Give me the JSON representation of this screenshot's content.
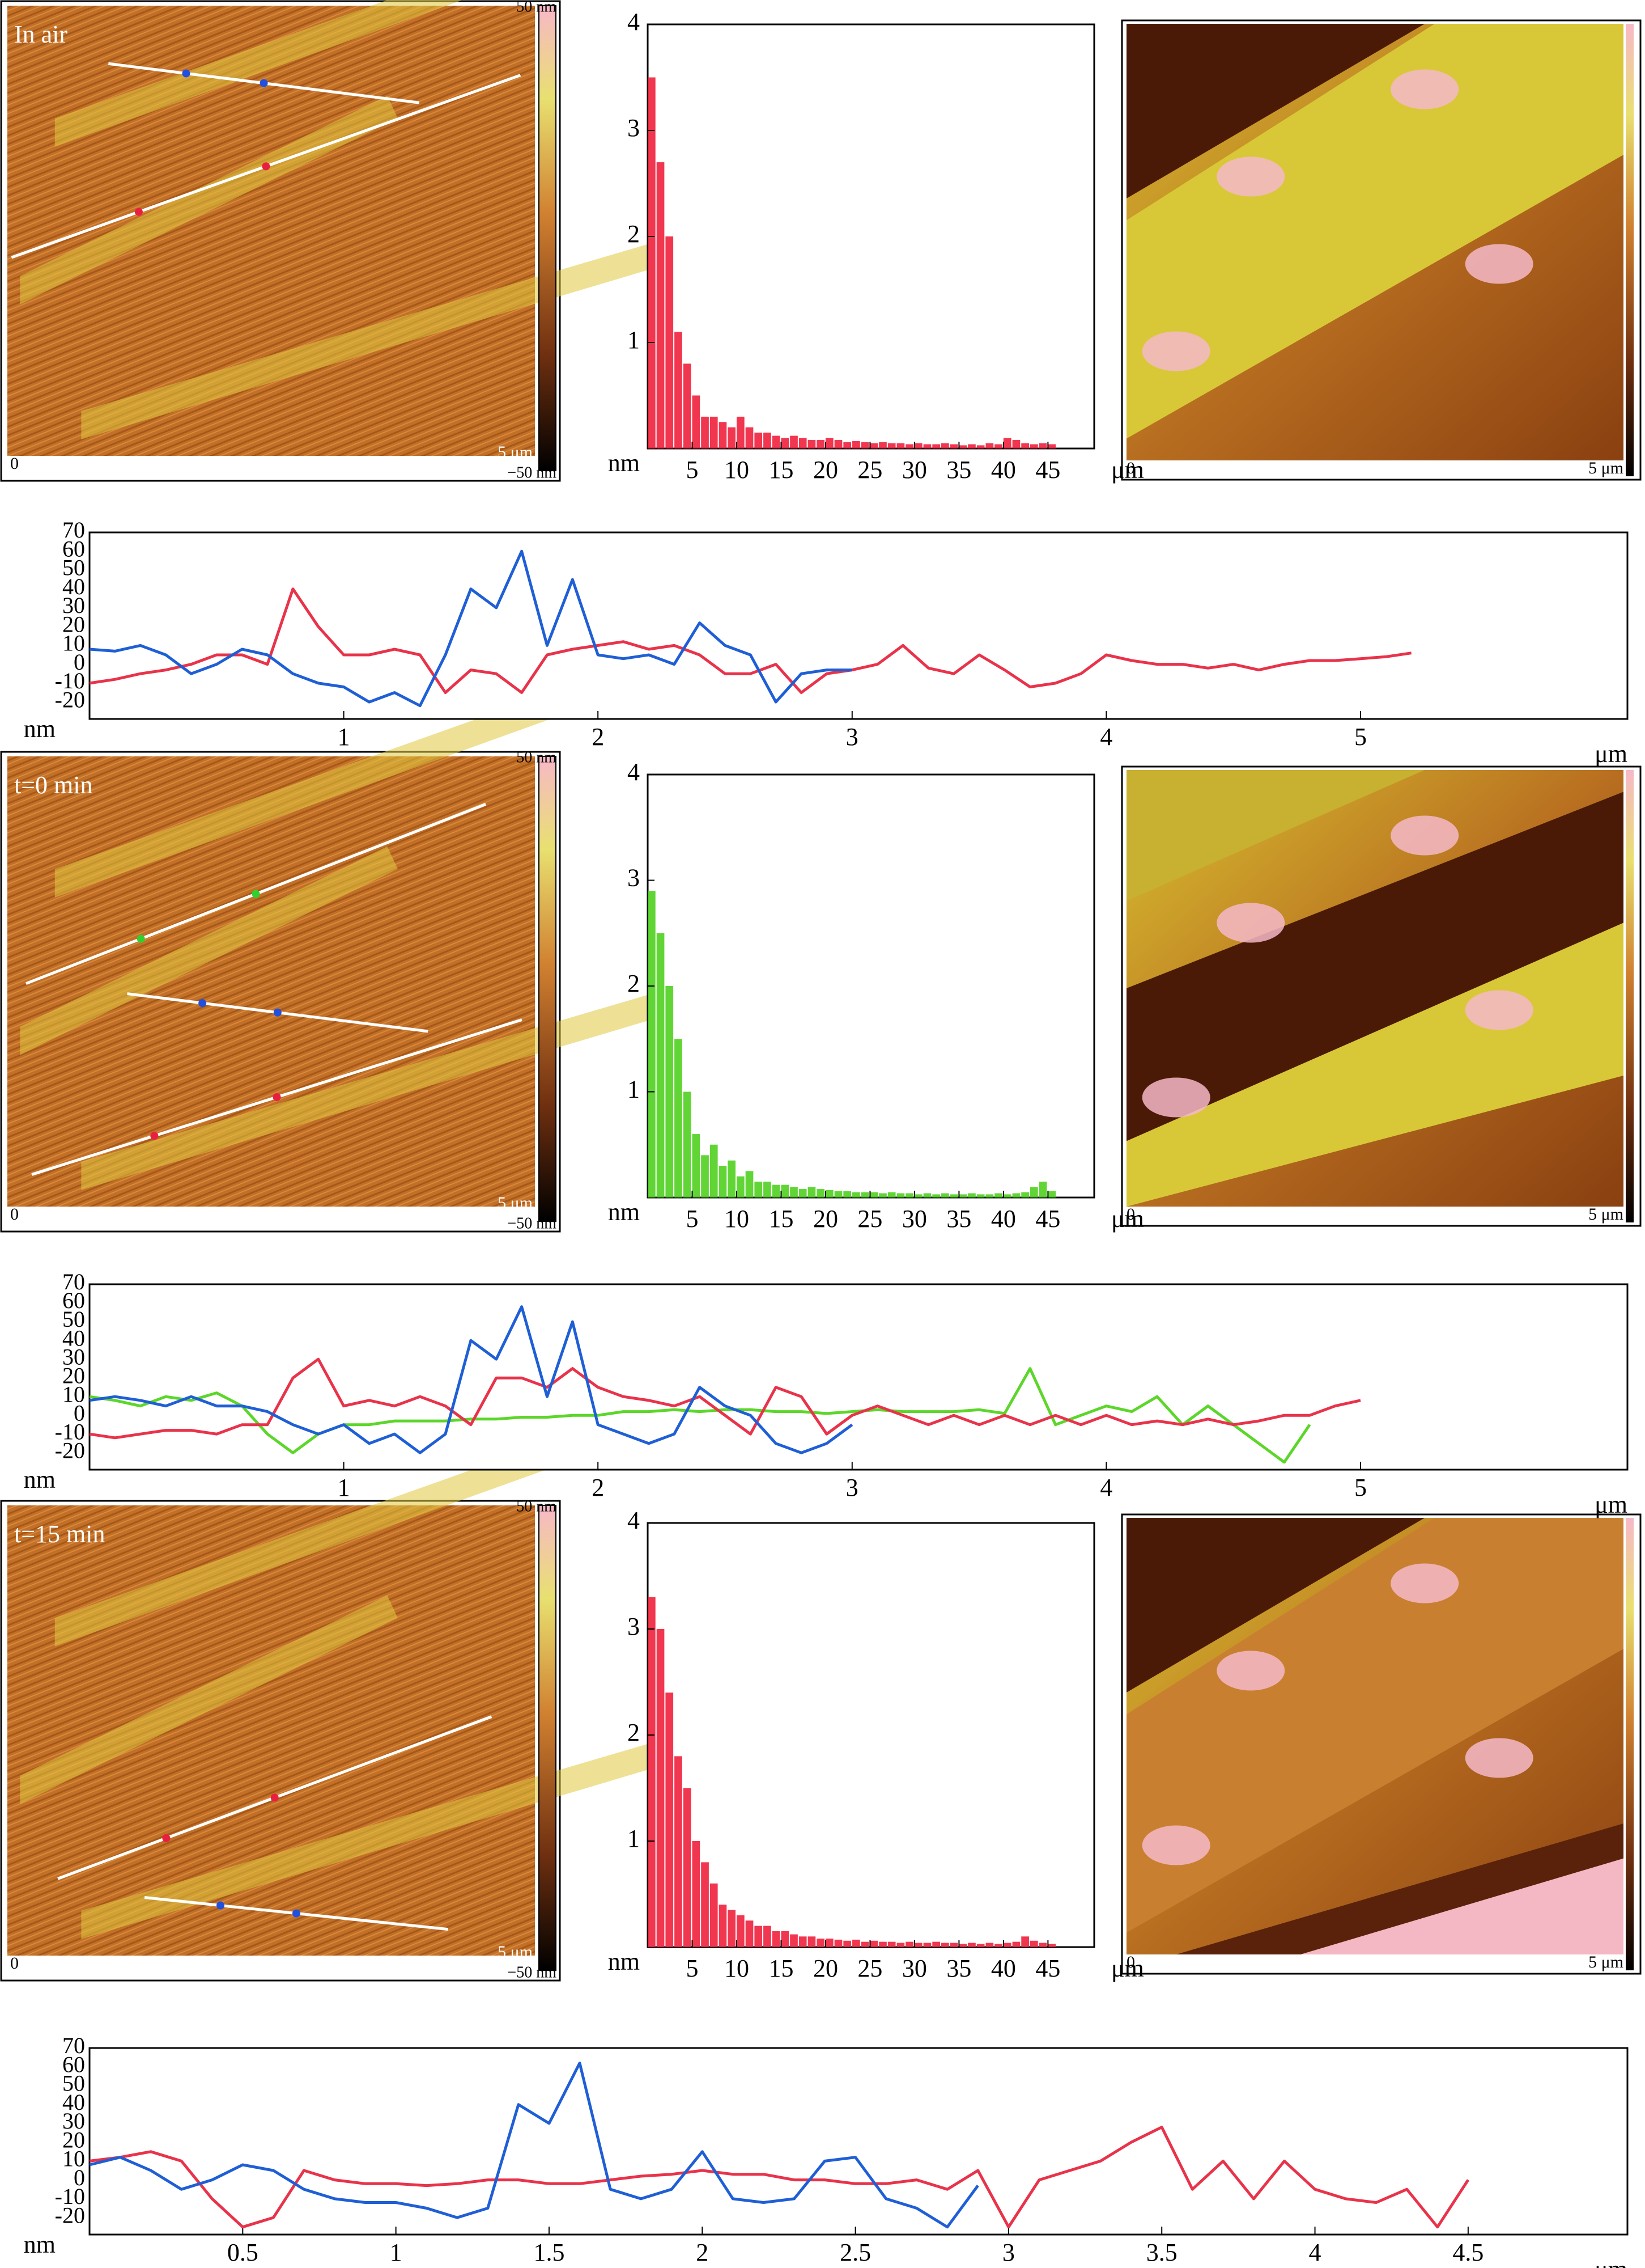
{
  "chart_data": [
    {
      "type": "histogram",
      "xlabel": "μm",
      "ylabel": "nm",
      "color": "#f0203c",
      "bins": [
        0,
        1,
        2,
        3,
        4,
        5,
        6,
        7,
        8,
        9,
        10,
        11,
        12,
        13,
        14,
        15,
        16,
        17,
        18,
        19,
        20,
        21,
        22,
        23,
        24,
        25,
        26,
        27,
        28,
        29,
        30,
        31,
        32,
        33,
        34,
        35,
        36,
        37,
        38,
        39,
        40,
        41,
        42,
        43,
        44,
        45,
        46
      ],
      "values": [
        3.5,
        2.7,
        2.0,
        1.1,
        0.8,
        0.5,
        0.3,
        0.3,
        0.25,
        0.2,
        0.3,
        0.2,
        0.15,
        0.15,
        0.12,
        0.1,
        0.12,
        0.1,
        0.08,
        0.08,
        0.1,
        0.08,
        0.06,
        0.07,
        0.06,
        0.05,
        0.06,
        0.05,
        0.05,
        0.04,
        0.05,
        0.04,
        0.04,
        0.05,
        0.04,
        0.03,
        0.04,
        0.03,
        0.05,
        0.04,
        0.1,
        0.08,
        0.05,
        0.04,
        0.05,
        0.04
      ],
      "xlim": [
        0,
        50.2
      ],
      "ylim": [
        0,
        4
      ],
      "xticks": [
        5,
        10,
        15,
        20,
        25,
        30,
        35,
        40,
        45
      ],
      "yticks": [
        1,
        2,
        3,
        4
      ]
    },
    {
      "type": "line",
      "xlabel": "μm",
      "ylabel": "nm",
      "xlim": [
        0,
        6.05
      ],
      "ylim": [
        -29,
        70
      ],
      "xticks": [
        1,
        2,
        3,
        4,
        5
      ],
      "yticks": [
        -20,
        -10,
        0,
        10,
        20,
        30,
        40,
        50,
        60,
        70
      ],
      "series": [
        {
          "color": "#e8334a",
          "x": [
            0,
            0.1,
            0.2,
            0.3,
            0.4,
            0.5,
            0.6,
            0.7,
            0.8,
            0.9,
            1,
            1.1,
            1.2,
            1.3,
            1.4,
            1.5,
            1.6,
            1.7,
            1.8,
            1.9,
            2,
            2.1,
            2.2,
            2.3,
            2.4,
            2.5,
            2.6,
            2.7,
            2.8,
            2.9,
            3,
            3.1,
            3.2,
            3.3,
            3.4,
            3.5,
            3.6,
            3.7,
            3.8,
            3.9,
            4,
            4.1,
            4.2,
            4.3,
            4.4,
            4.5,
            4.6,
            4.7,
            4.8,
            4.9,
            5,
            5.1,
            5.2
          ],
          "values": [
            -10,
            -8,
            -5,
            -3,
            0,
            5,
            5,
            0,
            40,
            20,
            5,
            5,
            8,
            5,
            -15,
            -3,
            -5,
            -15,
            5,
            8,
            10,
            12,
            8,
            10,
            5,
            -5,
            -5,
            0,
            -15,
            -5,
            -3,
            0,
            10,
            -2,
            -5,
            5,
            -3,
            -12,
            -10,
            -5,
            5,
            2,
            0,
            0,
            -2,
            0,
            -3,
            0,
            2,
            2,
            3,
            4,
            6
          ]
        },
        {
          "color": "#1f5fd6",
          "x": [
            0,
            0.1,
            0.2,
            0.3,
            0.4,
            0.5,
            0.6,
            0.7,
            0.8,
            0.9,
            1,
            1.1,
            1.2,
            1.3,
            1.4,
            1.5,
            1.6,
            1.7,
            1.8,
            1.9,
            2,
            2.1,
            2.2,
            2.3,
            2.4,
            2.5,
            2.6,
            2.7,
            2.8,
            2.9,
            3
          ],
          "values": [
            8,
            7,
            10,
            5,
            -5,
            0,
            8,
            5,
            -5,
            -10,
            -12,
            -20,
            -15,
            -22,
            5,
            40,
            30,
            60,
            10,
            45,
            5,
            3,
            5,
            0,
            22,
            10,
            5,
            -20,
            -5,
            -3,
            -3
          ]
        }
      ]
    },
    {
      "type": "histogram",
      "xlabel": "μm",
      "ylabel": "nm",
      "color": "#50d020",
      "bins": [
        0,
        1,
        2,
        3,
        4,
        5,
        6,
        7,
        8,
        9,
        10,
        11,
        12,
        13,
        14,
        15,
        16,
        17,
        18,
        19,
        20,
        21,
        22,
        23,
        24,
        25,
        26,
        27,
        28,
        29,
        30,
        31,
        32,
        33,
        34,
        35,
        36,
        37,
        38,
        39,
        40,
        41,
        42,
        43,
        44,
        45,
        46
      ],
      "values": [
        2.9,
        2.5,
        2.0,
        1.5,
        1.0,
        0.6,
        0.4,
        0.5,
        0.3,
        0.35,
        0.2,
        0.25,
        0.15,
        0.15,
        0.12,
        0.12,
        0.1,
        0.08,
        0.1,
        0.08,
        0.07,
        0.06,
        0.06,
        0.05,
        0.05,
        0.05,
        0.04,
        0.05,
        0.04,
        0.04,
        0.03,
        0.04,
        0.03,
        0.04,
        0.03,
        0.03,
        0.04,
        0.03,
        0.03,
        0.04,
        0.03,
        0.04,
        0.05,
        0.1,
        0.15,
        0.06
      ],
      "xlim": [
        0,
        50.2
      ],
      "ylim": [
        0,
        4
      ],
      "xticks": [
        5,
        10,
        15,
        20,
        25,
        30,
        35,
        40,
        45
      ],
      "yticks": [
        1,
        2,
        3,
        4
      ]
    },
    {
      "type": "line",
      "xlabel": "μm",
      "ylabel": "nm",
      "xlim": [
        0,
        6.05
      ],
      "ylim": [
        -29,
        70
      ],
      "xticks": [
        1,
        2,
        3,
        4,
        5
      ],
      "yticks": [
        -20,
        -10,
        0,
        10,
        20,
        30,
        40,
        50,
        60,
        70
      ],
      "series": [
        {
          "color": "#5cd62a",
          "x": [
            0,
            0.1,
            0.2,
            0.3,
            0.4,
            0.5,
            0.6,
            0.7,
            0.8,
            0.9,
            1,
            1.1,
            1.2,
            1.3,
            1.4,
            1.5,
            1.6,
            1.7,
            1.8,
            1.9,
            2,
            2.1,
            2.2,
            2.3,
            2.4,
            2.5,
            2.6,
            2.7,
            2.8,
            2.9,
            3,
            3.1,
            3.2,
            3.3,
            3.4,
            3.5,
            3.6,
            3.7,
            3.8,
            3.9,
            4,
            4.1,
            4.2,
            4.3,
            4.4,
            4.5,
            4.6,
            4.7,
            4.8
          ],
          "values": [
            10,
            8,
            5,
            10,
            8,
            12,
            5,
            -10,
            -20,
            -10,
            -5,
            -5,
            -3,
            -3,
            -3,
            -2,
            -2,
            -1,
            -1,
            0,
            0,
            2,
            2,
            3,
            2,
            3,
            3,
            2,
            2,
            1,
            2,
            3,
            2,
            2,
            2,
            3,
            1,
            25,
            -5,
            0,
            5,
            2,
            10,
            -5,
            5,
            -5,
            -15,
            -25,
            -5
          ]
        },
        {
          "color": "#e8334a",
          "x": [
            0,
            0.1,
            0.2,
            0.3,
            0.4,
            0.5,
            0.6,
            0.7,
            0.8,
            0.9,
            1,
            1.1,
            1.2,
            1.3,
            1.4,
            1.5,
            1.6,
            1.7,
            1.8,
            1.9,
            2,
            2.1,
            2.2,
            2.3,
            2.4,
            2.5,
            2.6,
            2.7,
            2.8,
            2.9,
            3,
            3.1,
            3.2,
            3.3,
            3.4,
            3.5,
            3.6,
            3.7,
            3.8,
            3.9,
            4,
            4.1,
            4.2,
            4.3,
            4.4,
            4.5,
            4.6,
            4.7,
            4.8,
            4.9,
            5
          ],
          "values": [
            -10,
            -12,
            -10,
            -8,
            -8,
            -10,
            -5,
            -5,
            20,
            30,
            5,
            8,
            5,
            10,
            5,
            -5,
            20,
            20,
            15,
            25,
            15,
            10,
            8,
            5,
            10,
            0,
            -10,
            15,
            10,
            -10,
            0,
            5,
            0,
            -5,
            0,
            -5,
            0,
            -5,
            0,
            -5,
            0,
            -5,
            -3,
            -5,
            -2,
            -5,
            -3,
            0,
            0,
            5,
            8
          ]
        },
        {
          "color": "#1f5fd6",
          "x": [
            0,
            0.1,
            0.2,
            0.3,
            0.4,
            0.5,
            0.6,
            0.7,
            0.8,
            0.9,
            1,
            1.1,
            1.2,
            1.3,
            1.4,
            1.5,
            1.6,
            1.7,
            1.8,
            1.9,
            2,
            2.1,
            2.2,
            2.3,
            2.4,
            2.5,
            2.6,
            2.7,
            2.8,
            2.9,
            3
          ],
          "values": [
            8,
            10,
            8,
            5,
            10,
            5,
            5,
            2,
            -5,
            -10,
            -5,
            -15,
            -10,
            -20,
            -10,
            40,
            30,
            58,
            10,
            50,
            -5,
            -10,
            -15,
            -10,
            15,
            5,
            0,
            -15,
            -20,
            -15,
            -5
          ]
        }
      ]
    },
    {
      "type": "histogram",
      "xlabel": "μm",
      "ylabel": "nm",
      "color": "#f0203c",
      "bins": [
        0,
        1,
        2,
        3,
        4,
        5,
        6,
        7,
        8,
        9,
        10,
        11,
        12,
        13,
        14,
        15,
        16,
        17,
        18,
        19,
        20,
        21,
        22,
        23,
        24,
        25,
        26,
        27,
        28,
        29,
        30,
        31,
        32,
        33,
        34,
        35,
        36,
        37,
        38,
        39,
        40,
        41,
        42,
        43,
        44,
        45,
        46
      ],
      "values": [
        3.3,
        3.0,
        2.4,
        1.8,
        1.5,
        1.0,
        0.8,
        0.6,
        0.4,
        0.35,
        0.3,
        0.25,
        0.2,
        0.2,
        0.15,
        0.15,
        0.12,
        0.1,
        0.1,
        0.08,
        0.08,
        0.07,
        0.06,
        0.07,
        0.05,
        0.06,
        0.05,
        0.05,
        0.04,
        0.05,
        0.04,
        0.04,
        0.05,
        0.04,
        0.04,
        0.03,
        0.04,
        0.03,
        0.04,
        0.03,
        0.04,
        0.05,
        0.1,
        0.06,
        0.04,
        0.03
      ],
      "xlim": [
        0,
        50.2
      ],
      "ylim": [
        0,
        4
      ],
      "xticks": [
        5,
        10,
        15,
        20,
        25,
        30,
        35,
        40,
        45
      ],
      "yticks": [
        1,
        2,
        3,
        4
      ]
    },
    {
      "type": "line",
      "xlabel": "μm",
      "ylabel": "nm",
      "xlim": [
        0,
        5.02
      ],
      "ylim": [
        -29,
        70
      ],
      "xticks": [
        0.5,
        1,
        1.5,
        2,
        2.5,
        3,
        3.5,
        4,
        4.5
      ],
      "yticks": [
        -20,
        -10,
        0,
        10,
        20,
        30,
        40,
        50,
        60,
        70
      ],
      "series": [
        {
          "color": "#e8334a",
          "x": [
            0,
            0.1,
            0.2,
            0.3,
            0.4,
            0.5,
            0.6,
            0.7,
            0.8,
            0.9,
            1,
            1.1,
            1.2,
            1.3,
            1.4,
            1.5,
            1.6,
            1.7,
            1.8,
            1.9,
            2,
            2.1,
            2.2,
            2.3,
            2.4,
            2.5,
            2.6,
            2.7,
            2.8,
            2.9,
            3,
            3.1,
            3.2,
            3.3,
            3.4,
            3.5,
            3.6,
            3.7,
            3.8,
            3.9,
            4,
            4.1,
            4.2,
            4.3,
            4.4,
            4.5
          ],
          "values": [
            10,
            12,
            15,
            10,
            -10,
            -25,
            -20,
            5,
            0,
            -2,
            -2,
            -3,
            -2,
            0,
            0,
            -2,
            -2,
            0,
            2,
            3,
            5,
            3,
            3,
            0,
            0,
            -2,
            -2,
            0,
            -5,
            5,
            -25,
            0,
            5,
            10,
            20,
            28,
            -5,
            10,
            -10,
            10,
            -5,
            -10,
            -12,
            -5,
            -25,
            0
          ]
        },
        {
          "color": "#1f5fd6",
          "x": [
            0,
            0.1,
            0.2,
            0.3,
            0.4,
            0.5,
            0.6,
            0.7,
            0.8,
            0.9,
            1,
            1.1,
            1.2,
            1.3,
            1.4,
            1.5,
            1.6,
            1.7,
            1.8,
            1.9,
            2,
            2.1,
            2.2,
            2.3,
            2.4,
            2.5,
            2.6,
            2.7,
            2.8,
            2.9
          ],
          "values": [
            8,
            12,
            5,
            -5,
            0,
            8,
            5,
            -5,
            -10,
            -12,
            -12,
            -15,
            -20,
            -15,
            40,
            30,
            62,
            -5,
            -10,
            -5,
            15,
            -10,
            -12,
            -10,
            10,
            12,
            -10,
            -15,
            -25,
            -3
          ]
        }
      ]
    }
  ],
  "images": [
    {
      "label": "In air",
      "colorbar_top": "50 nm",
      "colorbar_bottom": "−50 nm",
      "origin": "0",
      "scale": "5 μm"
    },
    {
      "origin": "0",
      "scale": "5 μm"
    },
    {
      "label": "t=0 min",
      "colorbar_top": "50 nm",
      "colorbar_bottom": "−50 nm",
      "origin": "0",
      "scale": "5 μm"
    },
    {
      "origin": "0",
      "scale": "5 μm"
    },
    {
      "label": "t=15 min",
      "colorbar_top": "50 nm",
      "colorbar_bottom": "−50 nm",
      "origin": "0",
      "scale": "5 μm"
    },
    {
      "origin": "0",
      "scale": "5 μm"
    }
  ]
}
